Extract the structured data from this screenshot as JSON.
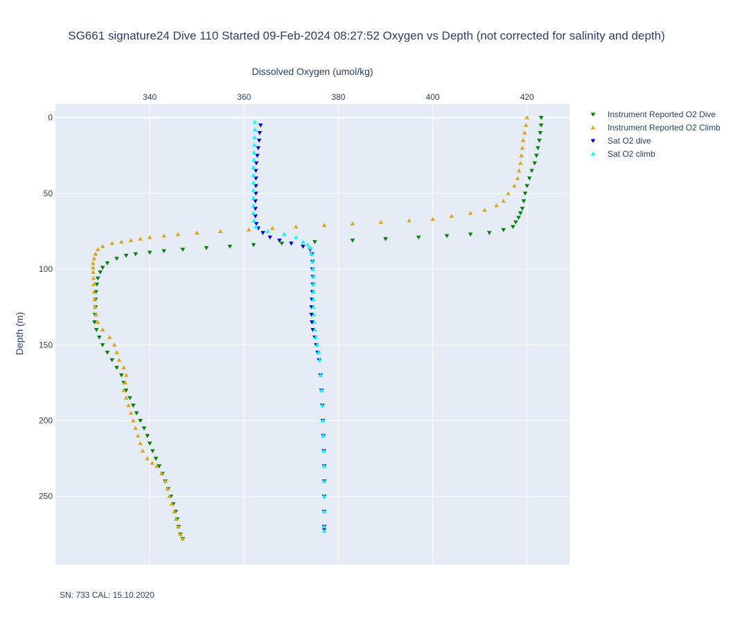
{
  "chart_data": {
    "type": "scatter",
    "title": "SG661 signature24 Dive 110 Started 09-Feb-2024 08:27:52  Oxygen vs Depth (not corrected for salinity and depth)",
    "xlabel": "Dissolved Oxygen (umol/kg)",
    "ylabel": "Depth (m)",
    "x_axis_position": "top",
    "y_axis_reversed": true,
    "xlim": [
      320,
      429
    ],
    "ylim": [
      -9,
      295
    ],
    "xticks": [
      340,
      360,
      380,
      400,
      420
    ],
    "yticks": [
      0,
      50,
      100,
      150,
      200,
      250
    ],
    "grid": true,
    "legend_position": "right",
    "footnote": "SN: 733  CAL: 15.10.2020",
    "series": [
      {
        "name": "Instrument Reported O2 Dive",
        "marker": "triangle-down",
        "color": "#008000",
        "points": [
          [
            423,
            0
          ],
          [
            423,
            5
          ],
          [
            422.8,
            10
          ],
          [
            422.6,
            15
          ],
          [
            422.3,
            20
          ],
          [
            422,
            25
          ],
          [
            421.6,
            30
          ],
          [
            421,
            35
          ],
          [
            420.5,
            40
          ],
          [
            420,
            45
          ],
          [
            419.6,
            50
          ],
          [
            419.3,
            55
          ],
          [
            419,
            60
          ],
          [
            418.6,
            63
          ],
          [
            418.2,
            66
          ],
          [
            417.6,
            69
          ],
          [
            417,
            72
          ],
          [
            415,
            74
          ],
          [
            412,
            76
          ],
          [
            408,
            77
          ],
          [
            403,
            78
          ],
          [
            397,
            79
          ],
          [
            390,
            80
          ],
          [
            383,
            81
          ],
          [
            375,
            82
          ],
          [
            368,
            83
          ],
          [
            362,
            84
          ],
          [
            357,
            85
          ],
          [
            352,
            86
          ],
          [
            347,
            87
          ],
          [
            343,
            88
          ],
          [
            340,
            89
          ],
          [
            337,
            90
          ],
          [
            335,
            91
          ],
          [
            333,
            93
          ],
          [
            331,
            96
          ],
          [
            330,
            99
          ],
          [
            329.5,
            102
          ],
          [
            329,
            106
          ],
          [
            328.8,
            110
          ],
          [
            328.6,
            115
          ],
          [
            328.5,
            120
          ],
          [
            328.5,
            125
          ],
          [
            328.4,
            130
          ],
          [
            328.3,
            135
          ],
          [
            328.7,
            140
          ],
          [
            329.3,
            145
          ],
          [
            330,
            150
          ],
          [
            331,
            155
          ],
          [
            332,
            160
          ],
          [
            333,
            165
          ],
          [
            334,
            170
          ],
          [
            334.5,
            175
          ],
          [
            335,
            180
          ],
          [
            335.8,
            185
          ],
          [
            336.5,
            190
          ],
          [
            337.2,
            195
          ],
          [
            338,
            200
          ],
          [
            338.8,
            205
          ],
          [
            339.5,
            210
          ],
          [
            340,
            215
          ],
          [
            340.6,
            220
          ],
          [
            341.3,
            225
          ],
          [
            342,
            230
          ],
          [
            342.7,
            235
          ],
          [
            343.3,
            240
          ],
          [
            343.9,
            245
          ],
          [
            344.5,
            250
          ],
          [
            345,
            255
          ],
          [
            345.5,
            260
          ],
          [
            345.8,
            265
          ],
          [
            346.1,
            270
          ],
          [
            346.5,
            275
          ],
          [
            347,
            278
          ]
        ]
      },
      {
        "name": "Instrument Reported O2 Climb",
        "marker": "triangle-up",
        "color": "#DAA520",
        "points": [
          [
            420,
            0
          ],
          [
            419.8,
            5
          ],
          [
            419.5,
            10
          ],
          [
            419.2,
            15
          ],
          [
            419,
            20
          ],
          [
            418.8,
            25
          ],
          [
            418.6,
            30
          ],
          [
            418.3,
            35
          ],
          [
            418,
            40
          ],
          [
            417.3,
            45
          ],
          [
            416,
            50
          ],
          [
            415,
            55
          ],
          [
            413.5,
            58
          ],
          [
            411,
            61
          ],
          [
            408,
            63
          ],
          [
            404,
            65
          ],
          [
            400,
            67
          ],
          [
            395,
            68
          ],
          [
            389,
            69
          ],
          [
            383,
            70
          ],
          [
            377,
            71
          ],
          [
            371,
            72
          ],
          [
            366,
            73
          ],
          [
            361,
            74
          ],
          [
            355,
            75
          ],
          [
            350,
            76
          ],
          [
            346,
            77
          ],
          [
            343,
            78
          ],
          [
            340,
            79
          ],
          [
            338,
            80
          ],
          [
            336,
            81
          ],
          [
            334,
            82
          ],
          [
            332,
            83
          ],
          [
            330,
            85
          ],
          [
            329,
            87
          ],
          [
            328.5,
            90
          ],
          [
            328.2,
            93
          ],
          [
            328,
            96
          ],
          [
            328,
            99
          ],
          [
            328,
            102
          ],
          [
            328.1,
            106
          ],
          [
            328.1,
            110
          ],
          [
            328.2,
            115
          ],
          [
            328.3,
            120
          ],
          [
            328.4,
            125
          ],
          [
            328.6,
            130
          ],
          [
            329,
            135
          ],
          [
            330,
            140
          ],
          [
            331.5,
            145
          ],
          [
            332.5,
            150
          ],
          [
            333,
            155
          ],
          [
            333.5,
            160
          ],
          [
            334.5,
            165
          ],
          [
            335,
            170
          ],
          [
            334.8,
            175
          ],
          [
            334.5,
            180
          ],
          [
            335,
            185
          ],
          [
            335.5,
            190
          ],
          [
            336,
            195
          ],
          [
            336.5,
            200
          ],
          [
            337,
            205
          ],
          [
            337.5,
            210
          ],
          [
            338,
            215
          ],
          [
            338.5,
            220
          ],
          [
            339.5,
            225
          ],
          [
            340.5,
            228
          ],
          [
            341.5,
            230
          ],
          [
            342.5,
            235
          ],
          [
            343.3,
            240
          ],
          [
            343.8,
            245
          ],
          [
            344.2,
            250
          ],
          [
            344.7,
            255
          ],
          [
            345.2,
            260
          ],
          [
            345.6,
            265
          ],
          [
            346,
            270
          ],
          [
            346.5,
            275
          ],
          [
            347,
            278
          ]
        ]
      },
      {
        "name": "Sat O2 dive",
        "marker": "triangle-down",
        "color": "#0000CD",
        "points": [
          [
            363.5,
            5
          ],
          [
            363.3,
            10
          ],
          [
            363.2,
            15
          ],
          [
            363,
            20
          ],
          [
            362.8,
            25
          ],
          [
            362.6,
            30
          ],
          [
            362.5,
            35
          ],
          [
            362.5,
            40
          ],
          [
            362.5,
            45
          ],
          [
            362.5,
            50
          ],
          [
            362.4,
            55
          ],
          [
            362.4,
            60
          ],
          [
            362.4,
            65
          ],
          [
            362.6,
            70
          ],
          [
            363,
            73
          ],
          [
            364,
            76
          ],
          [
            365.5,
            79
          ],
          [
            367.5,
            81
          ],
          [
            370,
            83
          ],
          [
            372.5,
            85
          ],
          [
            374,
            87
          ],
          [
            374.4,
            90
          ],
          [
            374.5,
            95
          ],
          [
            374.5,
            100
          ],
          [
            374.6,
            105
          ],
          [
            374.6,
            110
          ],
          [
            374.5,
            115
          ],
          [
            374.4,
            120
          ],
          [
            374.3,
            125
          ],
          [
            374.3,
            130
          ],
          [
            374.4,
            135
          ],
          [
            374.6,
            140
          ],
          [
            375,
            145
          ],
          [
            375.3,
            150
          ],
          [
            375.6,
            155
          ],
          [
            375.9,
            160
          ],
          [
            376.2,
            170
          ],
          [
            376.4,
            180
          ],
          [
            376.6,
            190
          ],
          [
            376.7,
            200
          ],
          [
            376.8,
            210
          ],
          [
            376.9,
            220
          ],
          [
            377,
            230
          ],
          [
            377,
            240
          ],
          [
            377,
            250
          ],
          [
            377,
            260
          ],
          [
            377,
            270
          ],
          [
            377,
            272
          ]
        ]
      },
      {
        "name": "Sat O2 climb",
        "marker": "triangle-up",
        "color": "#00FFFF",
        "points": [
          [
            362.3,
            3
          ],
          [
            362.3,
            8
          ],
          [
            362.2,
            13
          ],
          [
            362.2,
            18
          ],
          [
            362.1,
            23
          ],
          [
            362.1,
            28
          ],
          [
            362,
            33
          ],
          [
            362,
            38
          ],
          [
            362,
            43
          ],
          [
            362,
            48
          ],
          [
            362,
            53
          ],
          [
            362,
            58
          ],
          [
            362,
            63
          ],
          [
            362.1,
            68
          ],
          [
            362.5,
            72
          ],
          [
            365,
            75
          ],
          [
            368.5,
            77
          ],
          [
            371,
            79
          ],
          [
            372.5,
            82
          ],
          [
            373.5,
            84
          ],
          [
            374,
            86
          ],
          [
            374.3,
            90
          ],
          [
            374.5,
            95
          ],
          [
            374.6,
            100
          ],
          [
            374.7,
            105
          ],
          [
            374.7,
            110
          ],
          [
            374.7,
            115
          ],
          [
            374.7,
            120
          ],
          [
            374.7,
            125
          ],
          [
            374.8,
            130
          ],
          [
            374.9,
            135
          ],
          [
            375,
            140
          ],
          [
            375.2,
            145
          ],
          [
            375.5,
            150
          ],
          [
            375.8,
            155
          ],
          [
            376,
            160
          ],
          [
            376.2,
            170
          ],
          [
            376.4,
            180
          ],
          [
            376.6,
            190
          ],
          [
            376.7,
            200
          ],
          [
            376.8,
            210
          ],
          [
            376.9,
            220
          ],
          [
            377,
            230
          ],
          [
            377,
            240
          ],
          [
            377,
            250
          ],
          [
            377,
            260
          ],
          [
            377,
            270
          ],
          [
            377,
            273
          ]
        ]
      }
    ]
  }
}
